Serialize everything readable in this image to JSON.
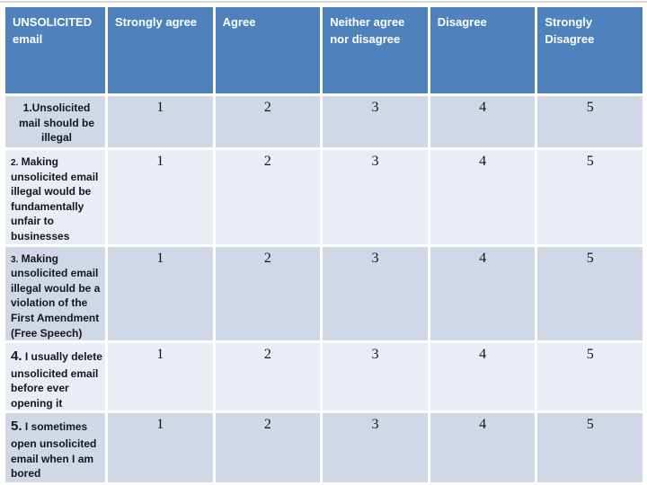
{
  "slide": {
    "colors": {
      "header_bg": "#4f81bd",
      "header_text": "#ffffff",
      "band_dark": "#d0d8e8",
      "band_light": "#e9edf4",
      "body_text": "#15151c"
    },
    "header": {
      "columns": [
        "UNSOLICITED email",
        "Strongly agree",
        "Agree",
        "Neither agree nor disagree",
        "Disagree",
        "Strongly Disagree"
      ]
    },
    "rows": [
      {
        "num": "1.",
        "text": "Unsolicited mail should be illegal",
        "values": [
          "1",
          "2",
          "3",
          "4",
          "5"
        ],
        "align": "center",
        "num_variant": "normal"
      },
      {
        "num": "2.",
        "text": " Making unsolicited email illegal would be fundamentally unfair to businesses",
        "values": [
          "1",
          "2",
          "3",
          "4",
          "5"
        ],
        "align": "left",
        "num_variant": "small"
      },
      {
        "num": "3.",
        "text": " Making unsolicited email illegal would be a violation of the First Amendment (Free Speech)",
        "values": [
          "1",
          "2",
          "3",
          "4",
          "5"
        ],
        "align": "left",
        "num_variant": "small"
      },
      {
        "num": "4.",
        "text": " I usually delete unsolicited email before ever opening it",
        "values": [
          "1",
          "2",
          "3",
          "4",
          "5"
        ],
        "align": "left",
        "num_variant": "large"
      },
      {
        "num": "5.",
        "text": " I sometimes open unsolicited email when I am bored",
        "values": [
          "1",
          "2",
          "3",
          "4",
          "5"
        ],
        "align": "left",
        "num_variant": "large"
      }
    ]
  }
}
